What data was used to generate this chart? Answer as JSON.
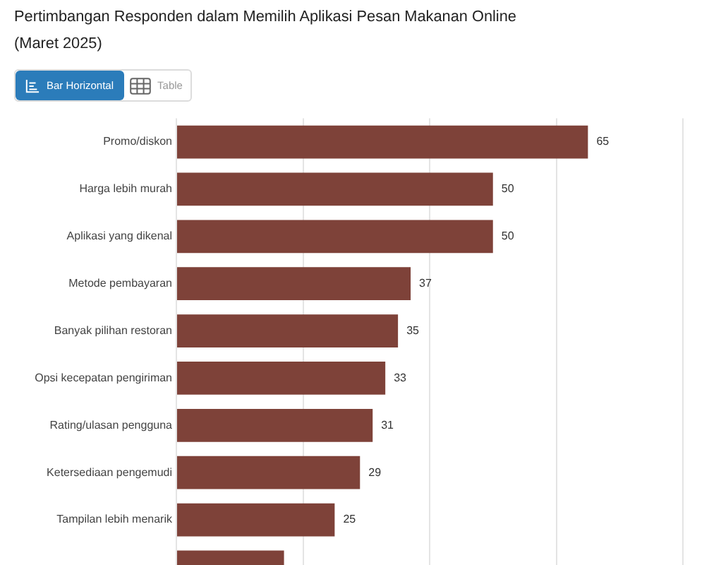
{
  "chart_data": {
    "type": "bar",
    "orientation": "horizontal",
    "title": "Pertimbangan Responden dalam Memilih Aplikasi Pesan Makanan Online (Maret 2025)",
    "annotations": [
      "Bar Horizontal",
      "Table"
    ],
    "categories": [
      "Promo/diskon",
      "Harga lebih murah",
      "Aplikasi yang dikenal",
      "Metode pembayaran",
      "Banyak pilihan restoran",
      "Opsi kecepatan pengiriman",
      "Rating/ulasan pengguna",
      "Ketersediaan pengemudi",
      "Tampilan lebih menarik",
      null
    ],
    "values": [
      65,
      50,
      50,
      37,
      35,
      33,
      31,
      29,
      25,
      17
    ],
    "value_labels": [
      "65",
      "50",
      "50",
      "37",
      "35",
      "33",
      "31",
      "29",
      "25",
      null
    ],
    "color": "#7e4239",
    "xlim": [
      0,
      80
    ],
    "xticks": [
      {
        "value": 0,
        "label": null
      },
      {
        "value": 20,
        "label": null
      },
      {
        "value": 40,
        "label": null
      },
      {
        "value": 60,
        "label": null
      },
      {
        "value": 80,
        "label": null
      }
    ],
    "grid": "x",
    "tick_labels": "y"
  }
}
